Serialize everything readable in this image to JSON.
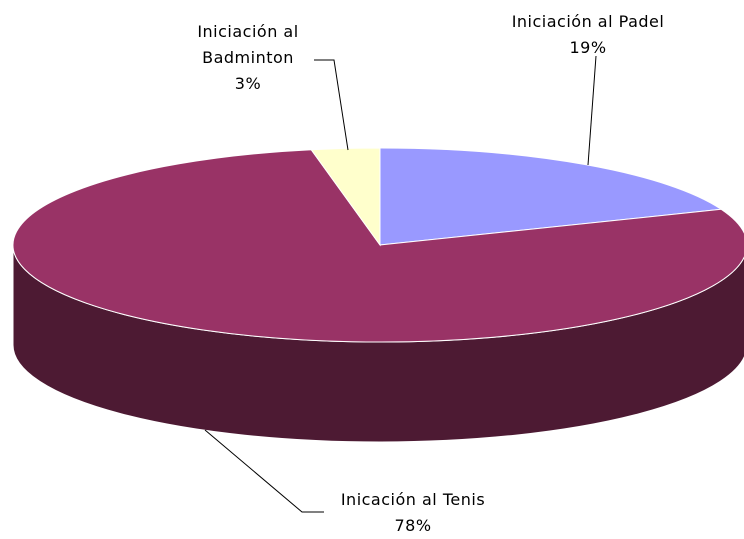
{
  "chart_data": {
    "type": "pie3d",
    "categories": [
      "Iniciación al Padel",
      "Inicación al Tenis",
      "Iniciación al Badminton"
    ],
    "values": [
      19,
      78,
      3
    ],
    "value_labels": [
      "19%",
      "78%",
      "3%"
    ],
    "colors": [
      "#9999ff",
      "#993366",
      "#ffffcc"
    ]
  }
}
